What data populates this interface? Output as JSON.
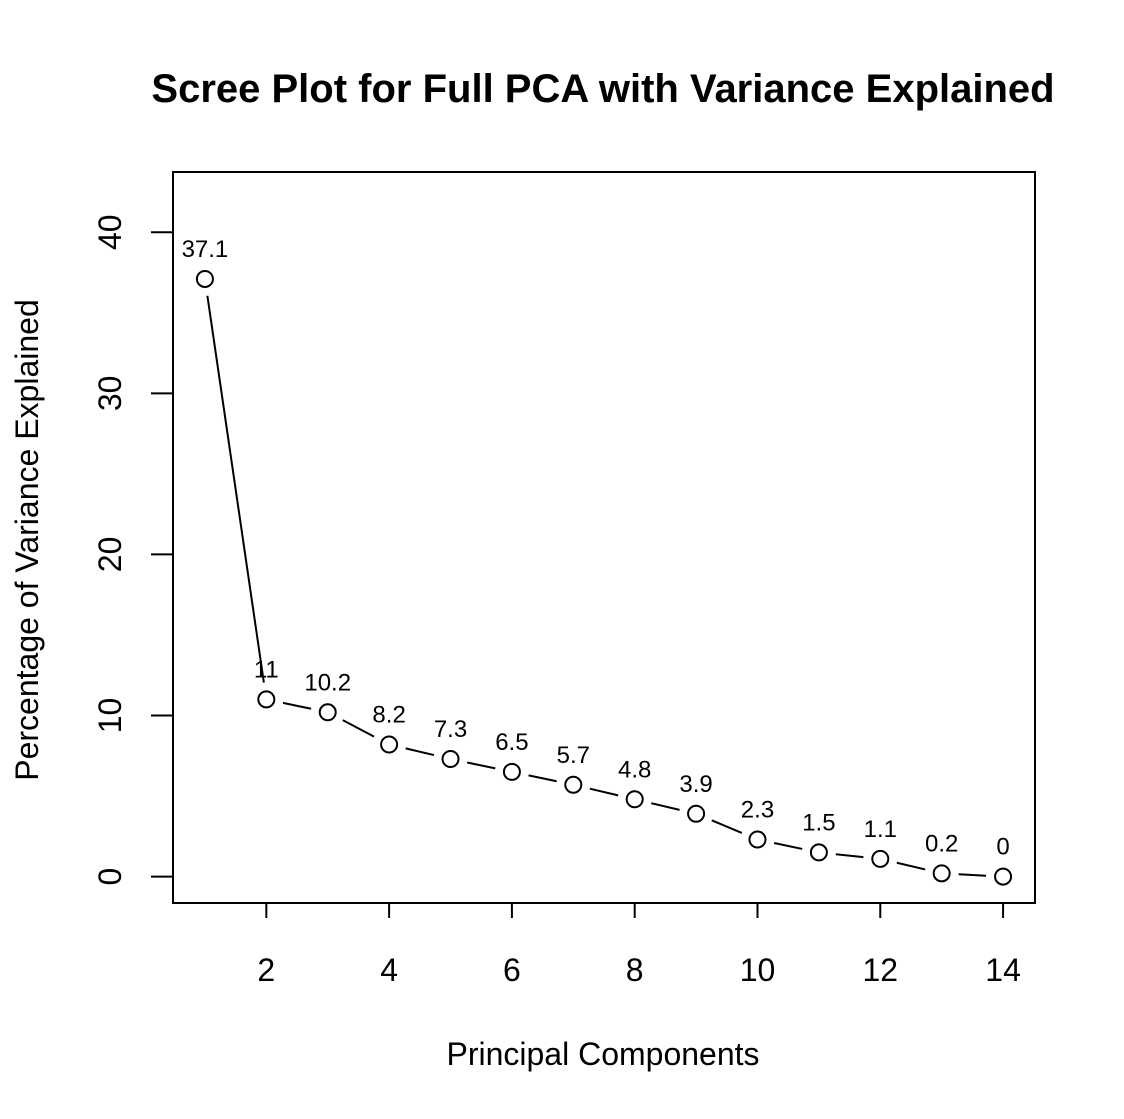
{
  "chart_data": {
    "type": "line",
    "title": "Scree Plot for Full PCA with Variance Explained",
    "xlabel": "Principal Components",
    "ylabel": "Percentage of Variance Explained",
    "x": [
      1,
      2,
      3,
      4,
      5,
      6,
      7,
      8,
      9,
      10,
      11,
      12,
      13,
      14
    ],
    "values": [
      37.1,
      11,
      10.2,
      8.2,
      7.3,
      6.5,
      5.7,
      4.8,
      3.9,
      2.3,
      1.5,
      1.1,
      0.2,
      0
    ],
    "data_labels": [
      "37.1",
      "11",
      "10.2",
      "8.2",
      "7.3",
      "6.5",
      "5.7",
      "4.8",
      "3.9",
      "2.3",
      "1.5",
      "1.1",
      "0.2",
      "0"
    ],
    "xticks": [
      2,
      4,
      6,
      8,
      10,
      12,
      14
    ],
    "yticks": [
      0,
      10,
      20,
      30,
      40
    ],
    "xlim": [
      0.48,
      14.52
    ],
    "ylim": [
      -1.64,
      43.74
    ],
    "marker": "open-circle",
    "line_style": "overplotted (line segments with gaps around points)",
    "grid": false,
    "legend": "none"
  }
}
